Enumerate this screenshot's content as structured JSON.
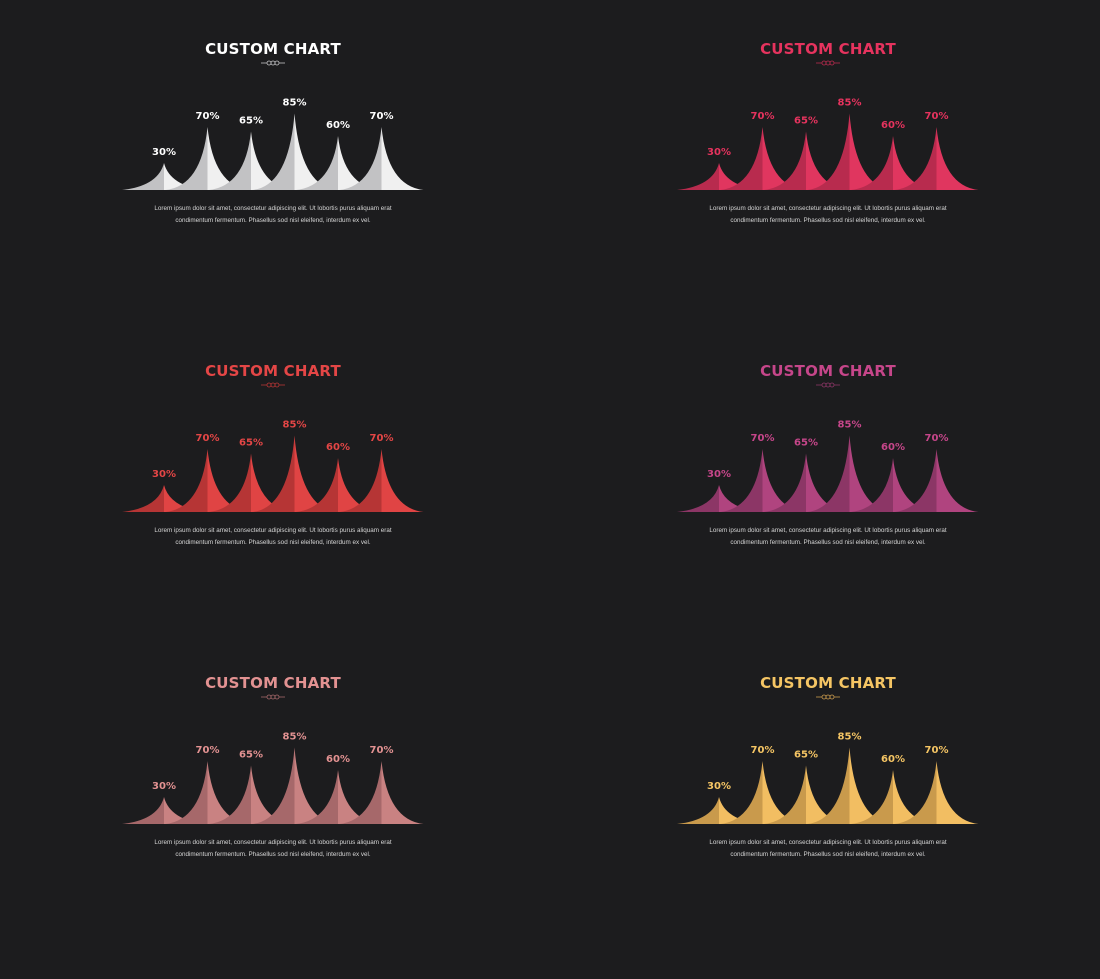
{
  "charts": [
    {
      "title": "CUSTOM CHART",
      "title_color": "#ffffff",
      "light": "#f0f0f0",
      "dark": "#c2c2c4"
    },
    {
      "title": "CUSTOM CHART",
      "title_color": "#e6335e",
      "light": "#e0365f",
      "dark": "#b82b4e"
    },
    {
      "title": "CUSTOM CHART",
      "title_color": "#e44646",
      "light": "#e04444",
      "dark": "#b63535"
    },
    {
      "title": "CUSTOM CHART",
      "title_color": "#c6468a",
      "light": "#b0447f",
      "dark": "#8c3666"
    },
    {
      "title": "CUSTOM CHART",
      "title_color": "#e39292",
      "light": "#c98282",
      "dark": "#a6686a"
    },
    {
      "title": "CUSTOM CHART",
      "title_color": "#f5c564",
      "light": "#f2be62",
      "dark": "#c99a4c"
    }
  ],
  "chart_data": {
    "type": "area",
    "values": [
      30,
      70,
      65,
      85,
      60,
      70
    ],
    "labels": [
      "30%",
      "70%",
      "65%",
      "85%",
      "60%",
      "70%"
    ],
    "ylim": [
      0,
      100
    ]
  },
  "description": {
    "line1": "Lorem ipsum dolor sit amet, consectetur adipiscing elit. Ut lobortis purus aliquam erat",
    "line2": "condimentum fermentum. Phasellus sod nisl eleifend, interdum ex vel."
  }
}
